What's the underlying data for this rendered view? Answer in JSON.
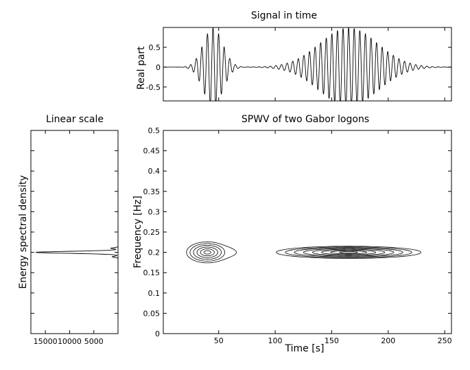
{
  "chart_data": [
    {
      "id": "signal",
      "type": "line",
      "title": "Signal in time",
      "xlabel": "",
      "ylabel": "Real part",
      "xlim": [
        1,
        256
      ],
      "ylim": [
        -0.85,
        1.0
      ],
      "yticks": [
        -0.5,
        0,
        0.5
      ],
      "ytick_labels": [
        "-0.5",
        "0",
        "0.5"
      ],
      "grid": false,
      "components": [
        {
          "center": 45,
          "width": 12,
          "amplitude": 1.0,
          "period": 4.95
        },
        {
          "center": 165,
          "width": 36,
          "amplitude": 1.0,
          "period": 4.95
        }
      ]
    },
    {
      "id": "esd",
      "type": "line",
      "title": "Linear scale",
      "xlabel": "",
      "ylabel": "Energy spectral density",
      "xlim": [
        18000,
        0
      ],
      "xticks": [
        15000,
        10000,
        5000
      ],
      "xtick_labels": [
        "15000",
        "10000",
        "5000"
      ],
      "ylim": [
        0,
        0.5
      ],
      "peak_frequency": 0.2,
      "peak_value": 17000,
      "grid": false
    },
    {
      "id": "spwv",
      "type": "heatmap",
      "title": "SPWV of two Gabor logons",
      "xlabel": "Time [s]",
      "ylabel": "Frequency [Hz]",
      "xlim": [
        1,
        256
      ],
      "ylim": [
        0,
        0.5
      ],
      "xticks": [
        50,
        100,
        150,
        200,
        250
      ],
      "xtick_labels": [
        "50",
        "100",
        "150",
        "200",
        "250"
      ],
      "yticks": [
        0,
        0.05,
        0.1,
        0.15,
        0.2,
        0.25,
        0.3,
        0.35,
        0.4,
        0.45,
        0.5
      ],
      "ytick_labels": [
        "0",
        "0.05",
        "0.1",
        "0.15",
        "0.2",
        "0.25",
        "0.3",
        "0.35",
        "0.4",
        "0.45",
        "0.5"
      ],
      "logons": [
        {
          "time": 40,
          "frequency": 0.2,
          "time_spread": 20,
          "freq_spread": 0.028,
          "levels": 6
        },
        {
          "time": 165,
          "frequency": 0.2,
          "time_spread": 68,
          "freq_spread": 0.016,
          "levels": 8
        }
      ],
      "grid": false
    }
  ]
}
